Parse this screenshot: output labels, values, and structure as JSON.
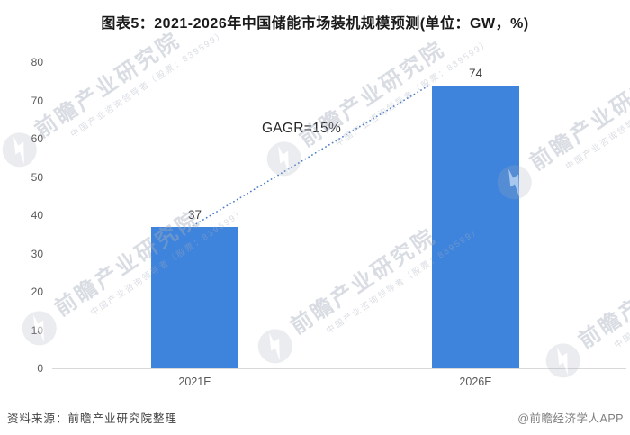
{
  "page": {
    "title": "图表5：2021-2026年中国储能市场装机规模预测(单位：GW，%)"
  },
  "chart_data": {
    "type": "bar",
    "title": "图表5：2021-2026年中国储能市场装机规模预测(单位：GW，%)",
    "unit": "GW",
    "categories": [
      "2021E",
      "2026E"
    ],
    "values": [
      37,
      74
    ],
    "ylim": [
      0,
      80
    ],
    "yticks": [
      0,
      10,
      20,
      30,
      40,
      50,
      60,
      70,
      80
    ],
    "grid": false,
    "legend": false,
    "annotation": {
      "text": "GAGR=15%",
      "connector": "dotted line from top of 2021E bar to top-left of 2026E bar"
    }
  },
  "footer": {
    "source": "资料来源：前瞻产业研究院整理",
    "brand": "@前瞻经济学人APP"
  },
  "watermark": {
    "name": "前瞻产业研究院",
    "tagline": "中国产业咨询领导者（股票：839599）"
  },
  "colors": {
    "bar": "#3E83DC",
    "trend_line": "#4A7CCB",
    "axis_line": "#D9D9D9",
    "tick_label": "#595959",
    "value_label": "#404040",
    "watermark": "#A5AEBC"
  }
}
